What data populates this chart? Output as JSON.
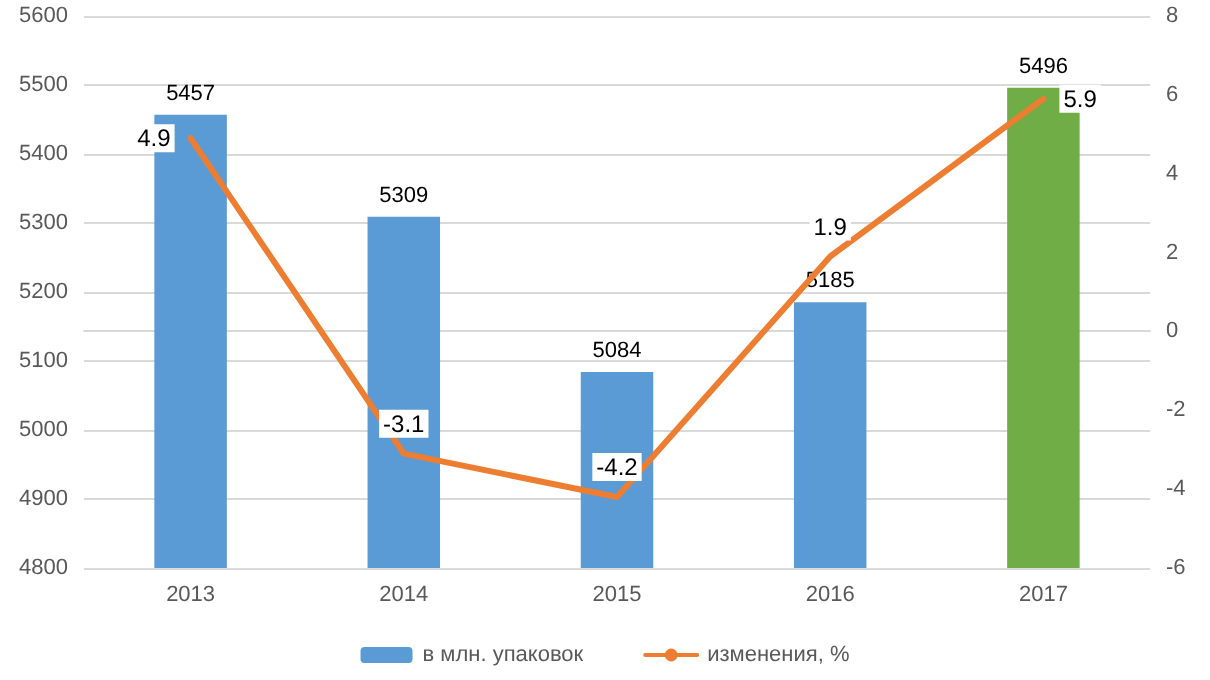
{
  "chart_data": {
    "type": "bar",
    "categories": [
      "2013",
      "2014",
      "2015",
      "2016",
      "2017"
    ],
    "series": [
      {
        "name": "в млн. упаковок",
        "color": "#5b9bd5",
        "colors": [
          "#5b9bd5",
          "#5b9bd5",
          "#5b9bd5",
          "#5b9bd5",
          "#70ad47"
        ],
        "values": [
          5457,
          5309,
          5084,
          5185,
          5496
        ]
      },
      {
        "name": "изменения, %",
        "type": "line",
        "axis": "y2",
        "color": "#ed7d31",
        "values": [
          4.9,
          -3.1,
          -4.2,
          1.9,
          5.9
        ]
      }
    ],
    "ylim": [
      4800,
      5600
    ],
    "yticks": [
      4800,
      4900,
      5000,
      5100,
      5200,
      5300,
      5400,
      5500,
      5600
    ],
    "y2lim": [
      -6,
      8
    ],
    "y2ticks": [
      -6,
      -4,
      -2,
      0,
      2,
      4,
      6,
      8
    ],
    "grid": "y",
    "legend": "bottom",
    "data_labels": true,
    "marker": "none",
    "line_style": "solid"
  }
}
